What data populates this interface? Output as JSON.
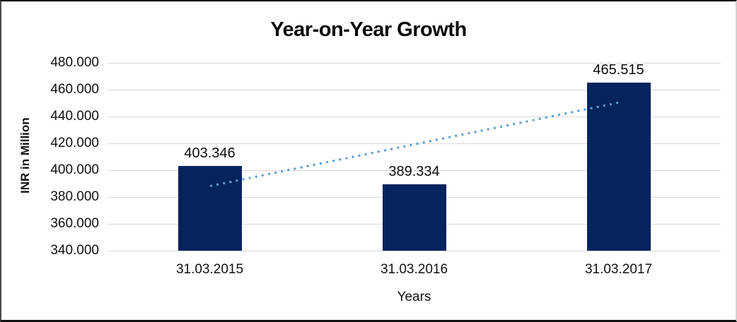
{
  "chart_data": {
    "type": "bar",
    "title": "Year-on-Year Growth",
    "xlabel": "Years",
    "ylabel": "INR in Million",
    "categories": [
      "31.03.2015",
      "31.03.2016",
      "31.03.2017"
    ],
    "values": [
      403.346,
      389.334,
      465.515
    ],
    "data_labels": [
      "403.346",
      "389.334",
      "465.515"
    ],
    "ylim": [
      340,
      480
    ],
    "yticks": {
      "labels": [
        "480.000",
        "460.000",
        "440.000",
        "420.000",
        "400.000",
        "380.000",
        "360.000",
        "340.000"
      ],
      "values": [
        480,
        460,
        440,
        420,
        400,
        380,
        360,
        340
      ]
    },
    "grid": true,
    "legend": false,
    "colors": {
      "bar": "#05235f",
      "trendline": "#5b9bd5",
      "gridline": "#d9d9d9"
    },
    "trendline": {
      "type": "linear",
      "style": "dotted",
      "start_value": 388.3,
      "end_value": 450.5
    }
  }
}
